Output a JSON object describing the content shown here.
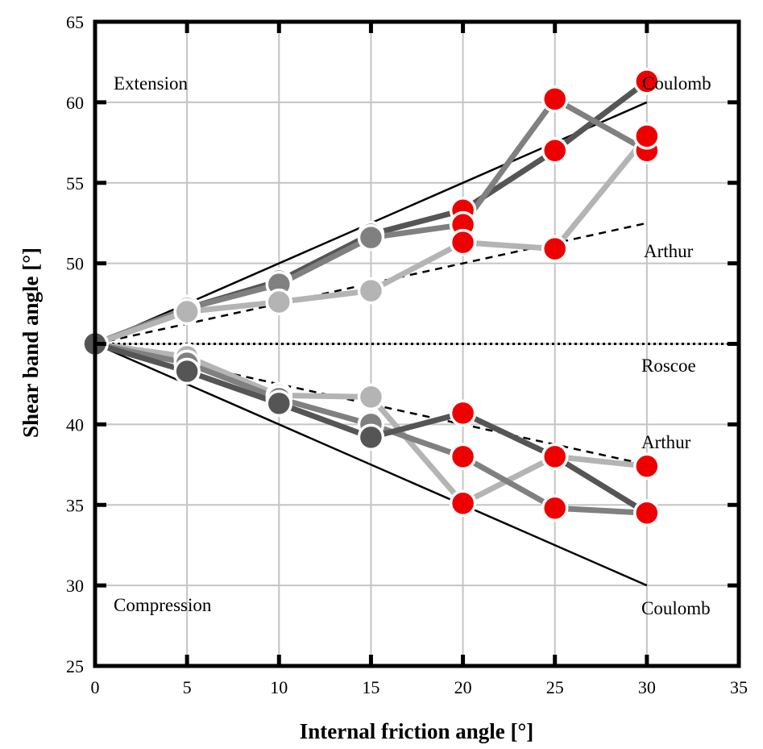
{
  "chart_data": {
    "type": "line",
    "xlabel": "Internal friction angle [°]",
    "ylabel": "Shear band angle [°]",
    "xlim": [
      0,
      35
    ],
    "ylim": [
      25,
      65
    ],
    "xticks": [
      0,
      5,
      10,
      15,
      20,
      25,
      30,
      35
    ],
    "yticks": [
      25,
      30,
      35,
      40,
      45,
      50,
      55,
      60,
      65
    ],
    "ytick_labels": [
      "25",
      "30",
      "35",
      "40",
      "",
      "50",
      "55",
      "60",
      "65"
    ],
    "grid": true,
    "theory_lines": [
      {
        "name": "Coulomb",
        "style": "solid",
        "x": [
          0,
          30
        ],
        "y": [
          45,
          60
        ]
      },
      {
        "name": "Arthur",
        "style": "dashed",
        "x": [
          0,
          30
        ],
        "y": [
          45,
          52.5
        ]
      },
      {
        "name": "Roscoe",
        "style": "dotted",
        "x": [
          0,
          35
        ],
        "y": [
          45,
          45
        ]
      },
      {
        "name": "Arthur",
        "style": "dashed",
        "x": [
          0,
          30
        ],
        "y": [
          45,
          37.5
        ]
      },
      {
        "name": "Coulomb",
        "style": "solid",
        "x": [
          0,
          30
        ],
        "y": [
          45,
          30
        ]
      }
    ],
    "series": [
      {
        "color": "#555555",
        "x": [
          0,
          5,
          10,
          15,
          20,
          25,
          30
        ],
        "y": [
          45,
          47.2,
          48.9,
          51.8,
          53.3,
          57.0,
          61.3
        ]
      },
      {
        "color": "#808080",
        "x": [
          0,
          5,
          10,
          15,
          20,
          25,
          30
        ],
        "y": [
          45,
          47.2,
          48.7,
          51.6,
          52.4,
          60.2,
          57.0
        ]
      },
      {
        "color": "#b4b4b4",
        "x": [
          0,
          5,
          10,
          15,
          20,
          25,
          30
        ],
        "y": [
          45,
          47.0,
          47.6,
          48.3,
          51.3,
          50.9,
          57.9
        ]
      },
      {
        "color": "#b4b4b4",
        "x": [
          0,
          5,
          10,
          15,
          20,
          25,
          30
        ],
        "y": [
          45,
          44.2,
          41.8,
          41.7,
          35.1,
          38.0,
          37.4
        ]
      },
      {
        "color": "#808080",
        "x": [
          0,
          5,
          10,
          15,
          20,
          25,
          30
        ],
        "y": [
          45,
          43.8,
          41.6,
          40.0,
          38.0,
          34.8,
          34.5
        ]
      },
      {
        "color": "#555555",
        "x": [
          0,
          5,
          10,
          15,
          20,
          25,
          30
        ],
        "y": [
          45,
          43.3,
          41.3,
          39.2,
          40.7,
          38.0,
          34.5
        ]
      }
    ],
    "marker_colors": {
      "small_angle": "#555555",
      "large_angle": "#ee0000"
    },
    "annotations": [
      {
        "id": "extension",
        "text": "Extension"
      },
      {
        "id": "coulomb-top",
        "text": "Coulomb"
      },
      {
        "id": "arthur-top",
        "text": "Arthur"
      },
      {
        "id": "roscoe",
        "text": "Roscoe"
      },
      {
        "id": "arthur-bottom",
        "text": "Arthur"
      },
      {
        "id": "compression",
        "text": "Compression"
      },
      {
        "id": "coulomb-bottom",
        "text": "Coulomb"
      }
    ]
  }
}
